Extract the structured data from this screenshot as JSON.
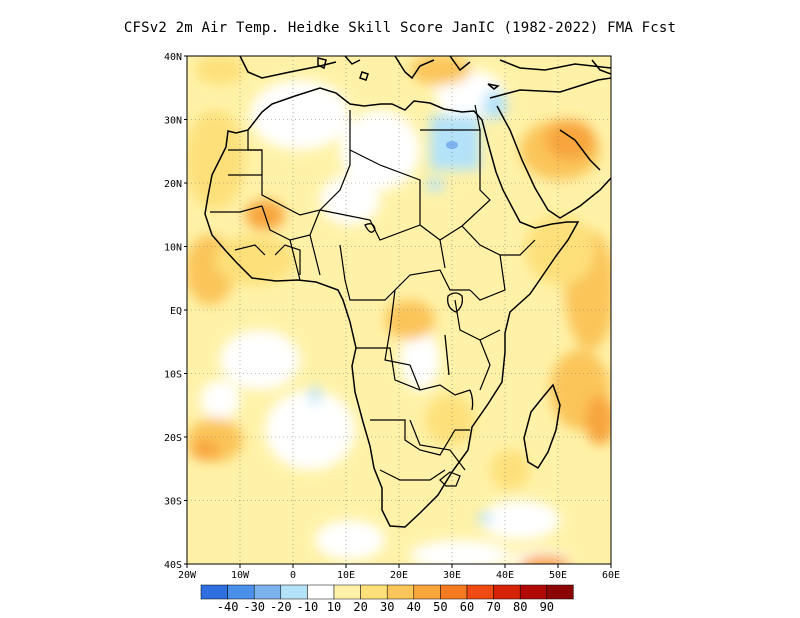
{
  "title": "CFSv2  2m Air Temp. Heidke Skill Score JanIC (1982-2022) FMA Fcst",
  "map": {
    "lon_range": [
      -20,
      60
    ],
    "lat_range": [
      -40,
      40
    ],
    "lon_ticks": [
      "20W",
      "10W",
      "0",
      "10E",
      "20E",
      "30E",
      "40E",
      "50E",
      "60E"
    ],
    "lat_ticks": [
      "40N",
      "30N",
      "20N",
      "10N",
      "EQ",
      "10S",
      "20S",
      "30S",
      "40S"
    ]
  },
  "colorbar": {
    "labels": [
      "-40",
      "-30",
      "-20",
      "-10",
      "10",
      "20",
      "30",
      "40",
      "50",
      "60",
      "70",
      "80",
      "90"
    ],
    "colors": [
      "#2f6fe0",
      "#4a90ea",
      "#7db4f0",
      "#b4e2f8",
      "#ffffff",
      "#fff2a8",
      "#fde07a",
      "#fbc55a",
      "#f8a53c",
      "#f47a22",
      "#ee4a12",
      "#d62308",
      "#b00a06",
      "#8a0606"
    ]
  },
  "colors": {
    "land_outline": "#000000",
    "grid": "#7a7a7a"
  }
}
